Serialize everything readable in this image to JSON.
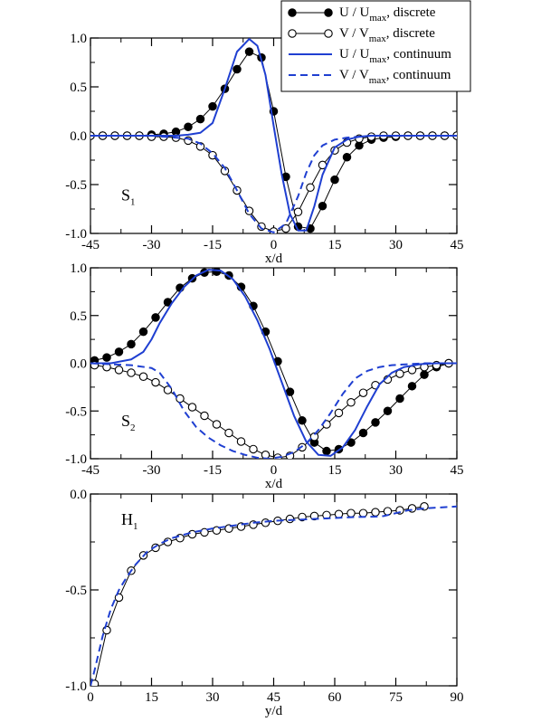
{
  "chart_data": [
    {
      "type": "line",
      "panel_label": "S",
      "panel_sub": "1",
      "xlabel": "x/d",
      "ylabel": "",
      "xlim": [
        -45,
        45
      ],
      "ylim": [
        -1.0,
        1.0
      ],
      "xticks": [
        "-45",
        "-30",
        "-15",
        "0",
        "15",
        "30",
        "45"
      ],
      "xtick_values": [
        -45,
        -30,
        -15,
        0,
        15,
        30,
        45
      ],
      "yticks": [
        "-1.0",
        "-0.5",
        "0.0",
        "0.5",
        "1.0"
      ],
      "ytick_values": [
        -1.0,
        -0.5,
        0.0,
        0.5,
        1.0
      ],
      "grid": false,
      "legend": {
        "position": "top-right",
        "entries": [
          {
            "base": "U / U",
            "sub": "max",
            "tail": ", discrete",
            "marker": "filled-circle",
            "style": "solid",
            "color": "#000000"
          },
          {
            "base": "V / V",
            "sub": "max",
            "tail": ", discrete",
            "marker": "open-circle",
            "style": "solid",
            "color": "#000000"
          },
          {
            "base": "U / U",
            "sub": "max",
            "tail": ", continuum",
            "marker": "none",
            "style": "solid",
            "color": "#1f3fd1"
          },
          {
            "base": "V / V",
            "sub": "max",
            "tail": ", continuum",
            "marker": "none",
            "style": "dashed",
            "color": "#1f3fd1"
          }
        ]
      },
      "series": [
        {
          "style": "discrete-filled",
          "color": "#000000",
          "x": [
            -45,
            -42,
            -39,
            -36,
            -33,
            -30,
            -27,
            -24,
            -21,
            -18,
            -15,
            -12,
            -9,
            -6,
            -3,
            0,
            3,
            6,
            9,
            12,
            15,
            18,
            21,
            24,
            27,
            30,
            33,
            36,
            39,
            42,
            45
          ],
          "y": [
            0,
            0,
            0,
            0,
            0,
            0.01,
            0.02,
            0.04,
            0.09,
            0.17,
            0.3,
            0.48,
            0.68,
            0.86,
            0.8,
            0.25,
            -0.42,
            -0.93,
            -0.95,
            -0.72,
            -0.45,
            -0.22,
            -0.1,
            -0.04,
            -0.02,
            -0.01,
            0,
            0,
            0,
            0,
            0
          ]
        },
        {
          "style": "discrete-open",
          "color": "#000000",
          "x": [
            -45,
            -42,
            -39,
            -36,
            -33,
            -30,
            -27,
            -24,
            -21,
            -18,
            -15,
            -12,
            -9,
            -6,
            -3,
            0,
            3,
            6,
            9,
            12,
            15,
            18,
            21,
            24,
            27,
            30,
            33,
            36,
            39,
            42,
            45
          ],
          "y": [
            0,
            0,
            0,
            0,
            0,
            -0.01,
            -0.01,
            -0.02,
            -0.05,
            -0.11,
            -0.2,
            -0.36,
            -0.56,
            -0.77,
            -0.93,
            -0.98,
            -0.95,
            -0.78,
            -0.53,
            -0.3,
            -0.15,
            -0.07,
            -0.03,
            -0.01,
            0,
            0,
            0,
            0,
            0,
            0,
            0
          ]
        },
        {
          "style": "continuum-solid",
          "color": "#1f3fd1",
          "x": [
            -45,
            -30,
            -24,
            -21,
            -18,
            -15,
            -12,
            -9,
            -6,
            -4,
            -2,
            0,
            2,
            4,
            6,
            8,
            10,
            12,
            15,
            18,
            21,
            24,
            30,
            45
          ],
          "y": [
            0,
            0,
            0,
            0.01,
            0.03,
            0.13,
            0.48,
            0.86,
            0.99,
            0.92,
            0.62,
            0.1,
            -0.4,
            -0.8,
            -0.97,
            -0.97,
            -0.72,
            -0.4,
            -0.12,
            -0.04,
            -0.01,
            0,
            0,
            0
          ]
        },
        {
          "style": "continuum-dashed",
          "color": "#1f3fd1",
          "x": [
            -45,
            -30,
            -21,
            -18,
            -15,
            -12,
            -9,
            -6,
            -3,
            0,
            3,
            6,
            8,
            10,
            12,
            15,
            18,
            21,
            24,
            30,
            45
          ],
          "y": [
            0,
            0,
            -0.03,
            -0.08,
            -0.18,
            -0.33,
            -0.56,
            -0.8,
            -0.95,
            -0.99,
            -0.9,
            -0.62,
            -0.38,
            -0.2,
            -0.1,
            -0.04,
            -0.02,
            -0.01,
            0,
            0,
            0
          ]
        }
      ]
    },
    {
      "type": "line",
      "panel_label": "S",
      "panel_sub": "2",
      "xlabel": "x/d",
      "ylabel": "",
      "xlim": [
        -45,
        45
      ],
      "ylim": [
        -1.0,
        1.0
      ],
      "xticks": [
        "-45",
        "-30",
        "-15",
        "0",
        "15",
        "30",
        "45"
      ],
      "xtick_values": [
        -45,
        -30,
        -15,
        0,
        15,
        30,
        45
      ],
      "yticks": [
        "-1.0",
        "-0.5",
        "0.0",
        "0.5",
        "1.0"
      ],
      "ytick_values": [
        -1.0,
        -0.5,
        0.0,
        0.5,
        1.0
      ],
      "grid": false,
      "series": [
        {
          "style": "discrete-filled",
          "color": "#000000",
          "x": [
            -44,
            -41,
            -38,
            -35,
            -32,
            -29,
            -26,
            -23,
            -20,
            -17,
            -14,
            -11,
            -8,
            -5,
            -2,
            1,
            4,
            7,
            10,
            13,
            16,
            19,
            22,
            25,
            28,
            31,
            34,
            37,
            40,
            43
          ],
          "y": [
            0.03,
            0.06,
            0.12,
            0.2,
            0.33,
            0.48,
            0.64,
            0.79,
            0.89,
            0.95,
            0.96,
            0.92,
            0.8,
            0.6,
            0.33,
            0.02,
            -0.3,
            -0.6,
            -0.83,
            -0.92,
            -0.9,
            -0.83,
            -0.73,
            -0.62,
            -0.5,
            -0.37,
            -0.24,
            -0.12,
            -0.04,
            0
          ]
        },
        {
          "style": "discrete-open",
          "color": "#000000",
          "x": [
            -44,
            -41,
            -38,
            -35,
            -32,
            -29,
            -26,
            -23,
            -20,
            -17,
            -14,
            -11,
            -8,
            -5,
            -2,
            1,
            4,
            7,
            10,
            13,
            16,
            19,
            22,
            25,
            28,
            31,
            34,
            37,
            40,
            43
          ],
          "y": [
            -0.02,
            -0.04,
            -0.07,
            -0.1,
            -0.14,
            -0.2,
            -0.28,
            -0.37,
            -0.46,
            -0.55,
            -0.64,
            -0.73,
            -0.82,
            -0.9,
            -0.96,
            -0.99,
            -0.97,
            -0.88,
            -0.77,
            -0.64,
            -0.52,
            -0.41,
            -0.31,
            -0.23,
            -0.17,
            -0.11,
            -0.07,
            -0.04,
            -0.02,
            0
          ]
        },
        {
          "style": "continuum-solid",
          "color": "#1f3fd1",
          "x": [
            -45,
            -40,
            -35,
            -32,
            -30,
            -28,
            -25,
            -22,
            -19,
            -16,
            -13,
            -10,
            -7,
            -4,
            -1,
            2,
            5,
            8,
            11,
            14,
            17,
            20,
            23,
            26,
            29,
            32,
            36,
            40,
            45
          ],
          "y": [
            0,
            0,
            0.04,
            0.12,
            0.25,
            0.42,
            0.63,
            0.8,
            0.92,
            0.98,
            0.97,
            0.88,
            0.7,
            0.45,
            0.15,
            -0.2,
            -0.55,
            -0.82,
            -0.96,
            -0.97,
            -0.88,
            -0.7,
            -0.45,
            -0.22,
            -0.1,
            -0.04,
            -0.01,
            0,
            0
          ]
        },
        {
          "style": "continuum-dashed",
          "color": "#1f3fd1",
          "x": [
            -45,
            -40,
            -35,
            -30,
            -28,
            -25,
            -22,
            -19,
            -16,
            -13,
            -10,
            -7,
            -4,
            -1,
            2,
            5,
            8,
            11,
            14,
            17,
            20,
            23,
            26,
            29,
            33,
            37,
            41,
            45
          ],
          "y": [
            0,
            -0.01,
            -0.02,
            -0.05,
            -0.1,
            -0.27,
            -0.5,
            -0.67,
            -0.78,
            -0.86,
            -0.92,
            -0.96,
            -0.99,
            -1.0,
            -0.98,
            -0.93,
            -0.84,
            -0.7,
            -0.52,
            -0.32,
            -0.16,
            -0.08,
            -0.04,
            -0.02,
            -0.01,
            0,
            0,
            0
          ]
        }
      ]
    },
    {
      "type": "line",
      "panel_label": "H",
      "panel_sub": "1",
      "xlabel": "y/d",
      "ylabel": "",
      "xlim": [
        0,
        90
      ],
      "ylim": [
        -1.0,
        0.0
      ],
      "xticks": [
        "0",
        "15",
        "30",
        "45",
        "60",
        "75",
        "90"
      ],
      "xtick_values": [
        0,
        15,
        30,
        45,
        60,
        75,
        90
      ],
      "yticks": [
        "-1.0",
        "-0.5",
        "0.0"
      ],
      "ytick_values": [
        -1.0,
        -0.5,
        0.0
      ],
      "grid": false,
      "series": [
        {
          "style": "discrete-open",
          "color": "#000000",
          "x": [
            1,
            4,
            7,
            10,
            13,
            16,
            19,
            22,
            25,
            28,
            31,
            34,
            37,
            40,
            43,
            46,
            49,
            52,
            55,
            58,
            61,
            64,
            67,
            70,
            73,
            76,
            79,
            82
          ],
          "y": [
            -0.99,
            -0.71,
            -0.54,
            -0.4,
            -0.32,
            -0.28,
            -0.25,
            -0.23,
            -0.21,
            -0.2,
            -0.19,
            -0.18,
            -0.17,
            -0.16,
            -0.15,
            -0.14,
            -0.13,
            -0.12,
            -0.115,
            -0.11,
            -0.105,
            -0.1,
            -0.1,
            -0.095,
            -0.09,
            -0.085,
            -0.075,
            -0.065
          ]
        },
        {
          "style": "continuum-dashed",
          "color": "#1f3fd1",
          "x": [
            0,
            1,
            3,
            5,
            7,
            9,
            11,
            14,
            17,
            20,
            25,
            30,
            35,
            40,
            45,
            50,
            55,
            60,
            65,
            70,
            72,
            75,
            78,
            82,
            86,
            90
          ],
          "y": [
            -1.0,
            -0.92,
            -0.74,
            -0.6,
            -0.5,
            -0.43,
            -0.37,
            -0.3,
            -0.26,
            -0.23,
            -0.2,
            -0.18,
            -0.165,
            -0.15,
            -0.14,
            -0.135,
            -0.13,
            -0.125,
            -0.12,
            -0.118,
            -0.115,
            -0.1,
            -0.085,
            -0.075,
            -0.07,
            -0.065
          ]
        }
      ]
    }
  ]
}
